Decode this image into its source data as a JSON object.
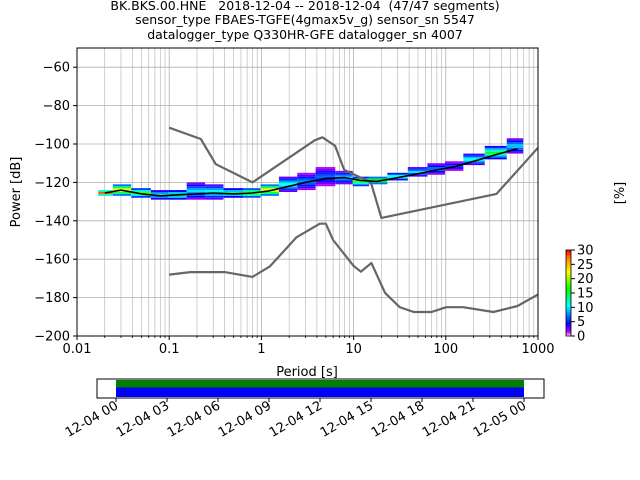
{
  "title_lines": [
    "BK.BKS.00.HNE   2018-12-04 -- 2018-12-04  (47/47 segments)",
    "sensor_type FBAES-TGFE(4gmax5v_g) sensor_sn 5547",
    "datalogger_type Q330HR-GFE datalogger_sn 4007"
  ],
  "chart_data": [
    {
      "type": "heatmap",
      "title": "BK.BKS.00.HNE   2018-12-04 -- 2018-12-04  (47/47 segments)",
      "xlabel": "Period [s]",
      "ylabel": "Power [dB]",
      "xscale": "log",
      "xlim": [
        0.01,
        1000
      ],
      "ylim": [
        -200,
        -50
      ],
      "grid": true,
      "x_ticks": [
        0.01,
        0.1,
        1,
        10,
        100,
        1000
      ],
      "x_tick_labels": [
        "0.01",
        "0.1",
        "1",
        "10",
        "100",
        "1000"
      ],
      "y_ticks": [
        -200,
        -180,
        -160,
        -140,
        -120,
        -100,
        -80,
        -60
      ],
      "y_tick_labels": [
        "−200",
        "−180",
        "−160",
        "−140",
        "−120",
        "−100",
        "−80",
        "−60"
      ],
      "colorbar": {
        "label": "[%]",
        "min": 0,
        "max": 30,
        "ticks": [
          0,
          5,
          10,
          15,
          20,
          25,
          30
        ],
        "tick_labels": [
          "0",
          "5",
          "10",
          "15",
          "20",
          "25",
          "30"
        ]
      },
      "series": [
        {
          "kind": "model-high",
          "color": "#666666",
          "x": [
            0.1,
            0.22,
            0.32,
            0.8,
            3.8,
            4.6,
            6.3,
            7.9,
            15.4,
            20,
            354.8,
            10000
          ],
          "y": [
            -91.5,
            -97.4,
            -110.5,
            -120.0,
            -98.0,
            -96.5,
            -101.0,
            -113.5,
            -120.0,
            -138.5,
            -126.0,
            -48.5
          ]
        },
        {
          "kind": "model-low",
          "color": "#666666",
          "x": [
            0.1,
            0.17,
            0.4,
            0.8,
            1.24,
            2.4,
            4.3,
            5.0,
            6.0,
            10.0,
            12.0,
            15.6,
            21.9,
            31.6,
            45.0,
            70.0,
            101.0,
            154.0,
            328.0,
            600.0,
            10000
          ],
          "y": [
            -168.0,
            -166.7,
            -166.7,
            -169.2,
            -163.7,
            -148.6,
            -141.5,
            -141.5,
            -150.0,
            -163.5,
            -166.5,
            -162.0,
            -177.5,
            -185.0,
            -187.5,
            -187.5,
            -185.0,
            -185.0,
            -187.5,
            -184.4,
            -151.5
          ]
        },
        {
          "kind": "mean",
          "color": "#000000",
          "x": [
            0.02,
            0.03,
            0.05,
            0.08,
            0.12,
            0.2,
            0.3,
            0.5,
            0.8,
            1.2,
            2,
            3,
            5,
            8,
            12,
            18,
            30,
            50,
            80,
            120,
            200,
            350,
            600
          ],
          "y": [
            -125.5,
            -124.0,
            -126.0,
            -127.0,
            -126.5,
            -126.0,
            -125.5,
            -126.0,
            -125.5,
            -124.5,
            -122.0,
            -120.0,
            -118.0,
            -117.5,
            -119.0,
            -119.5,
            -117.5,
            -115.5,
            -113.5,
            -112.0,
            -109.0,
            -105.5,
            -102.5
          ]
        }
      ],
      "density": {
        "x": [
          0.02,
          0.03,
          0.05,
          0.08,
          0.12,
          0.2,
          0.3,
          0.5,
          0.8,
          1.2,
          2,
          3,
          5,
          8,
          12,
          18,
          30,
          50,
          80,
          120,
          200,
          350,
          600
        ],
        "y_low": [
          -127,
          -127,
          -128,
          -129,
          -129,
          -129,
          -129,
          -128,
          -128,
          -127,
          -125,
          -124,
          -122,
          -121,
          -122,
          -121,
          -119,
          -117,
          -116,
          -114,
          -111,
          -108,
          -105
        ],
        "y_high": [
          -125,
          -122,
          -124,
          -125,
          -125,
          -121,
          -122,
          -124,
          -124,
          -122,
          -118,
          -116,
          -113,
          -115,
          -118,
          -118,
          -116,
          -113,
          -111,
          -110,
          -106,
          -102,
          -98
        ],
        "percent_peak": [
          28,
          25,
          18,
          12,
          14,
          10,
          12,
          14,
          20,
          25,
          12,
          8,
          7,
          10,
          18,
          20,
          14,
          10,
          8,
          6,
          12,
          16,
          10
        ]
      }
    },
    {
      "type": "timeline",
      "xlim": [
        "12-04 00",
        "12-05 00"
      ],
      "x_tick_labels": [
        "12-04 00",
        "12-04 03",
        "12-04 06",
        "12-04 09",
        "12-04 12",
        "12-04 15",
        "12-04 18",
        "12-04 21",
        "12-05 00"
      ],
      "bars": [
        {
          "kind": "data-availability",
          "color": "#008000",
          "start_hour": 0,
          "end_hour": 24
        },
        {
          "kind": "psd-segments",
          "color": "#0000ff",
          "start_hour": 0,
          "end_hour": 24
        }
      ]
    }
  ]
}
